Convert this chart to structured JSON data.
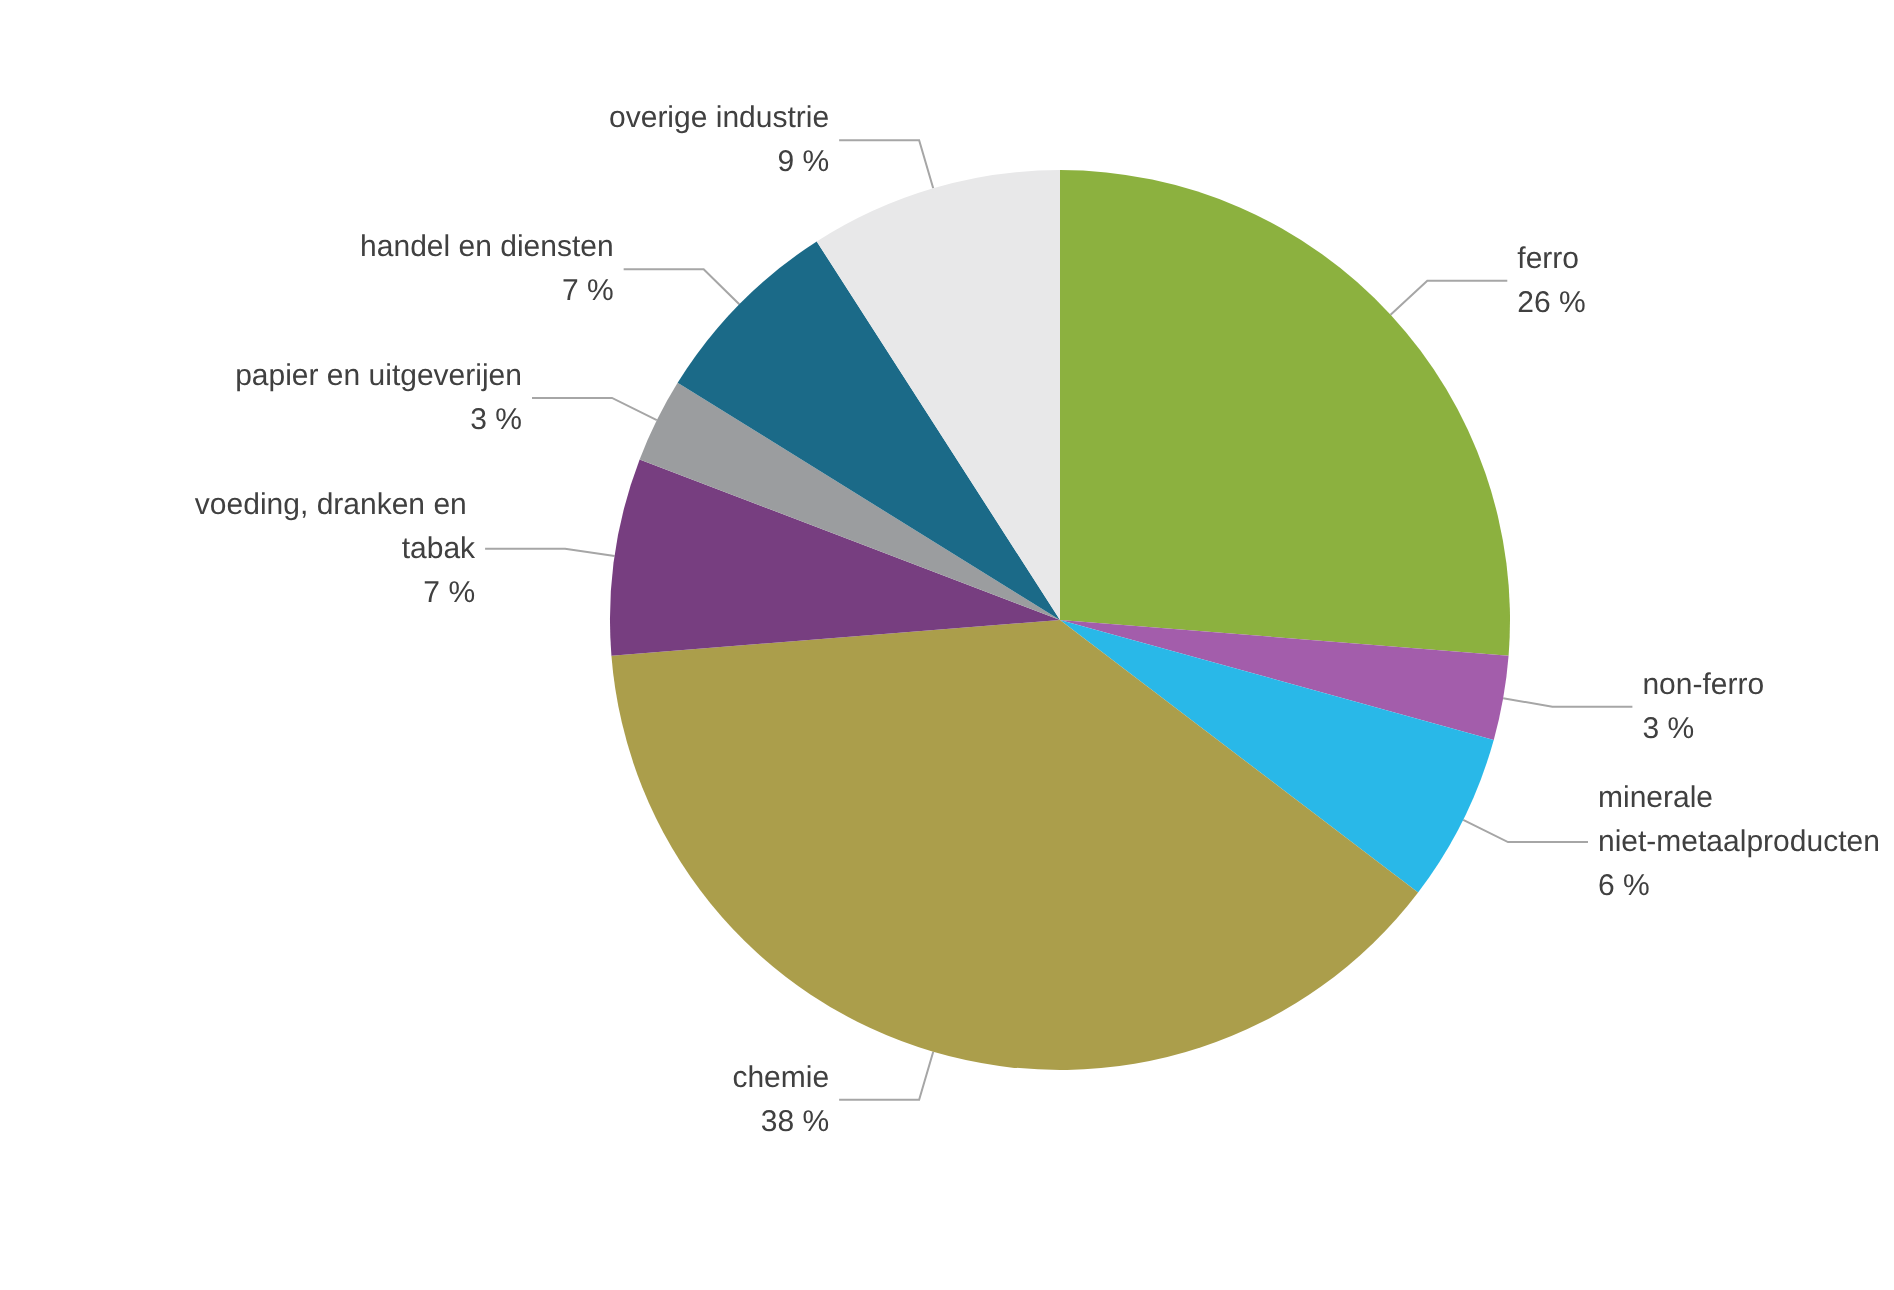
{
  "chart_data": {
    "type": "pie",
    "categories": [
      "ferro",
      "non-ferro",
      "minerale niet-metaalproducten",
      "chemie",
      "voeding, dranken en tabak",
      "papier en uitgeverijen",
      "handel en diensten",
      "overige industrie"
    ],
    "values": [
      26,
      3,
      6,
      38,
      7,
      3,
      7,
      9
    ],
    "value_labels": [
      "26 %",
      "3 %",
      "6 %",
      "38 %",
      "7 %",
      "3 %",
      "7 %",
      "9 %"
    ],
    "colors": [
      "#8cb13f",
      "#a35dab",
      "#29b8e8",
      "#ab9e4b",
      "#773e80",
      "#9b9d9f",
      "#1b6a88",
      "#e8e8e9"
    ],
    "legend": false
  }
}
